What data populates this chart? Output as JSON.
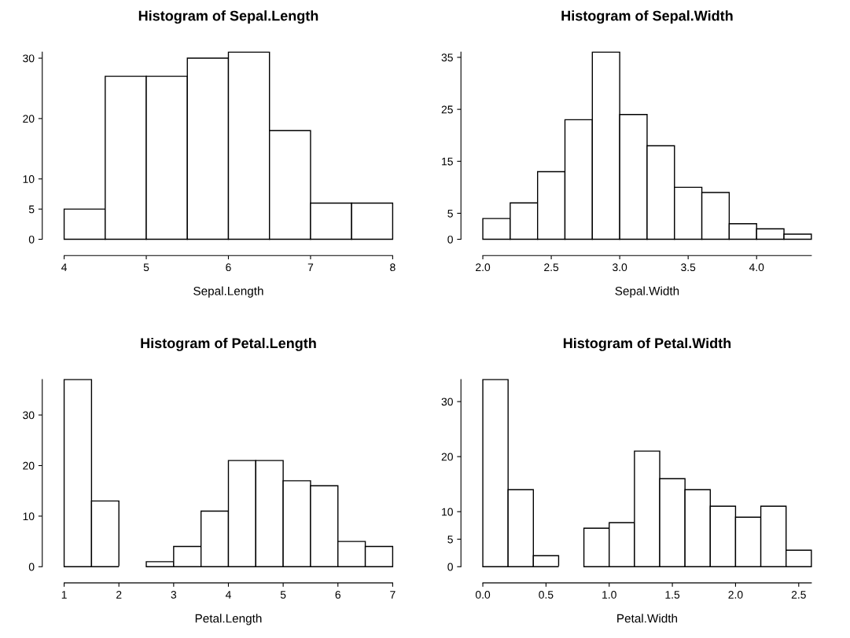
{
  "chart_data": [
    {
      "type": "histogram",
      "title": "Histogram of Sepal.Length",
      "xlabel": "Sepal.Length",
      "color": "#ffffff",
      "bins": [
        4,
        4.5,
        5,
        5.5,
        6,
        6.5,
        7,
        7.5,
        8
      ],
      "values": [
        5,
        27,
        27,
        30,
        31,
        18,
        6,
        6
      ],
      "xlim": [
        4,
        8
      ],
      "ylim": [
        0,
        31
      ],
      "xticks": [
        4,
        5,
        6,
        7,
        8
      ],
      "yticks": [
        0,
        5,
        10,
        20,
        30
      ],
      "grid": false
    },
    {
      "type": "histogram",
      "title": "Histogram of Sepal.Width",
      "xlabel": "Sepal.Width",
      "color": "#ffffff",
      "bins": [
        2.0,
        2.2,
        2.4,
        2.6,
        2.8,
        3.0,
        3.2,
        3.4,
        3.6,
        3.8,
        4.0,
        4.2,
        4.4
      ],
      "values": [
        4,
        7,
        13,
        23,
        36,
        24,
        18,
        10,
        9,
        3,
        2,
        1
      ],
      "xlim": [
        2.0,
        4.4
      ],
      "ylim": [
        0,
        36
      ],
      "xticks": [
        {
          "value": 2.0,
          "label": "2.0"
        },
        2.5,
        {
          "value": 3.0,
          "label": "3.0"
        },
        3.5,
        {
          "value": 4.0,
          "label": "4.0"
        }
      ],
      "yticks": [
        0,
        5,
        15,
        25,
        35
      ],
      "grid": false
    },
    {
      "type": "histogram",
      "title": "Histogram of Petal.Length",
      "xlabel": "Petal.Length",
      "color": "#ffffff",
      "bins": [
        1,
        1.5,
        2,
        2.5,
        3,
        3.5,
        4,
        4.5,
        5,
        5.5,
        6,
        6.5,
        7
      ],
      "values": [
        37,
        13,
        0,
        1,
        4,
        11,
        21,
        21,
        17,
        16,
        5,
        4
      ],
      "xlim": [
        1,
        7
      ],
      "ylim": [
        0,
        37
      ],
      "xticks": [
        1,
        2,
        3,
        4,
        5,
        6,
        7
      ],
      "yticks": [
        0,
        10,
        20,
        30
      ],
      "grid": false
    },
    {
      "type": "histogram",
      "title": "Histogram of Petal.Width",
      "xlabel": "Petal.Width",
      "color": "#ffffff",
      "bins": [
        0.0,
        0.2,
        0.4,
        0.6,
        0.8,
        1.0,
        1.2,
        1.4,
        1.6,
        1.8,
        2.0,
        2.2,
        2.4,
        2.6
      ],
      "values": [
        34,
        14,
        2,
        0,
        7,
        8,
        21,
        16,
        14,
        11,
        9,
        11,
        3
      ],
      "xlim": [
        0.0,
        2.6
      ],
      "ylim": [
        0,
        34
      ],
      "xticks": [
        {
          "value": 0.0,
          "label": "0.0"
        },
        0.5,
        {
          "value": 1.0,
          "label": "1.0"
        },
        1.5,
        {
          "value": 2.0,
          "label": "2.0"
        },
        2.5
      ],
      "yticks": [
        0,
        5,
        10,
        20,
        30
      ],
      "grid": false
    }
  ]
}
